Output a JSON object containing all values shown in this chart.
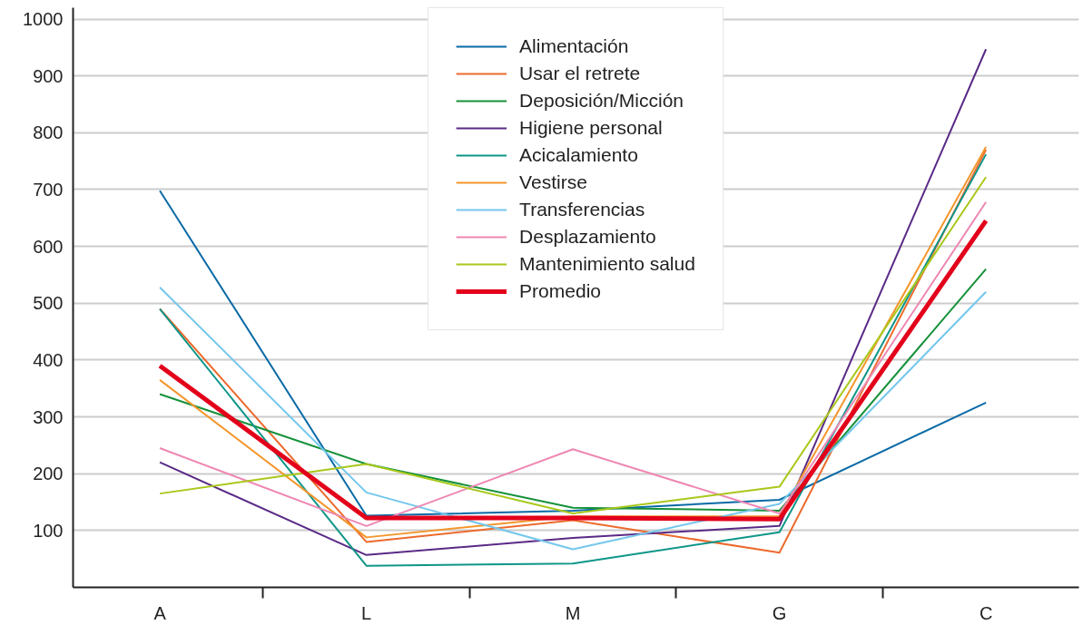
{
  "chart_data": {
    "type": "line",
    "categories": [
      "A",
      "L",
      "M",
      "G",
      "C"
    ],
    "series": [
      {
        "name": "Alimentación",
        "color": "#0a6aa6",
        "values": [
          698,
          126,
          135,
          154,
          325
        ]
      },
      {
        "name": "Usar el retrete",
        "color": "#ec6a2c",
        "values": [
          490,
          80,
          118,
          61,
          770
        ]
      },
      {
        "name": "Deposición/Micción",
        "color": "#16913a",
        "values": [
          340,
          217,
          140,
          135,
          560
        ]
      },
      {
        "name": "Higiene personal",
        "color": "#5a2a86",
        "values": [
          220,
          57,
          87,
          108,
          947
        ]
      },
      {
        "name": "Acicalamiento",
        "color": "#0f9688",
        "values": [
          490,
          38,
          42,
          97,
          762
        ]
      },
      {
        "name": "Vestirse",
        "color": "#f4962c",
        "values": [
          365,
          88,
          125,
          125,
          775
        ]
      },
      {
        "name": "Transferencias",
        "color": "#74c7ec",
        "values": [
          528,
          167,
          67,
          147,
          520
        ]
      },
      {
        "name": "Desplazamiento",
        "color": "#ee87b3",
        "values": [
          245,
          108,
          243,
          130,
          678
        ]
      },
      {
        "name": "Mantenimiento salud",
        "color": "#a8c81a",
        "values": [
          165,
          217,
          130,
          177,
          722
        ]
      },
      {
        "name": "Promedio",
        "color": "#e3001b",
        "values": [
          390,
          122,
          122,
          120,
          645
        ]
      }
    ],
    "ylim": [
      0,
      1020
    ],
    "yticks": [
      100,
      200,
      300,
      400,
      500,
      600,
      700,
      800,
      900,
      1000
    ],
    "grid": "y",
    "legend": "top",
    "marker": "none",
    "line_style": "solid"
  }
}
